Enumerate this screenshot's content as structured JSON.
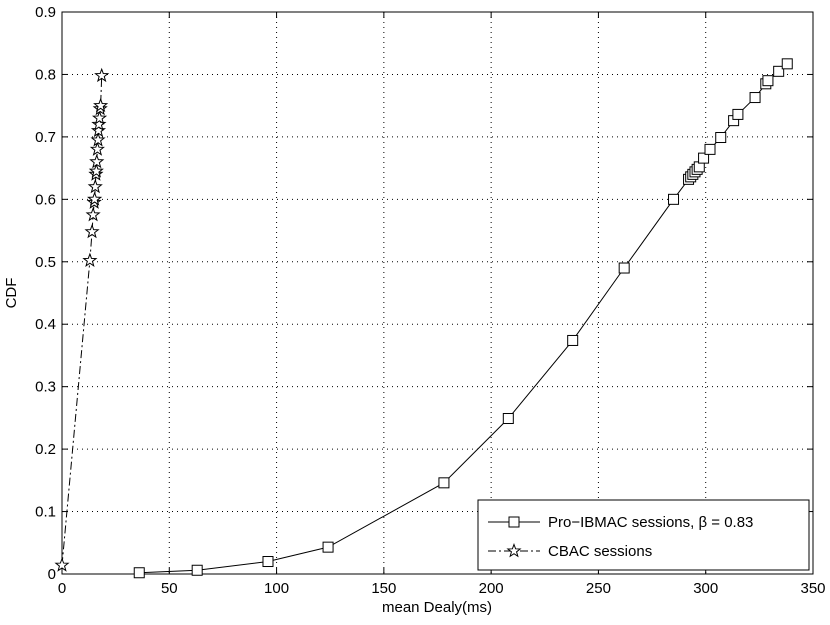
{
  "chart_data": {
    "type": "line",
    "title": "",
    "xlabel": "mean Dealy(ms)",
    "ylabel": "CDF",
    "xlim": [
      0,
      350
    ],
    "ylim": [
      0,
      0.9
    ],
    "x_ticks": [
      0,
      50,
      100,
      150,
      200,
      250,
      300,
      350
    ],
    "y_ticks": [
      0,
      0.1,
      0.2,
      0.3,
      0.4,
      0.5,
      0.6,
      0.7,
      0.8,
      0.9
    ],
    "x_tick_labels": [
      "0",
      "50",
      "100",
      "150",
      "200",
      "250",
      "300",
      "350"
    ],
    "y_tick_labels": [
      "0",
      "0.1",
      "0.2",
      "0.3",
      "0.4",
      "0.5",
      "0.6",
      "0.7",
      "0.8",
      "0.9"
    ],
    "grid": true,
    "legend_position": "bottom-right",
    "series": [
      {
        "name": "Pro−IBMAC sessions, β = 0.83",
        "line_style": "solid",
        "marker": "square",
        "color": "#000000",
        "points": [
          [
            36,
            0.002
          ],
          [
            63,
            0.006
          ],
          [
            96,
            0.02
          ],
          [
            124,
            0.043
          ],
          [
            178,
            0.146
          ],
          [
            208,
            0.249
          ],
          [
            238,
            0.374
          ],
          [
            262,
            0.49
          ],
          [
            285,
            0.6
          ],
          [
            292,
            0.632
          ],
          [
            293,
            0.636
          ],
          [
            294,
            0.64
          ],
          [
            295,
            0.644
          ],
          [
            296,
            0.648
          ],
          [
            297,
            0.652
          ],
          [
            299,
            0.666
          ],
          [
            302,
            0.68
          ],
          [
            307,
            0.699
          ],
          [
            313,
            0.726
          ],
          [
            315,
            0.736
          ],
          [
            323,
            0.763
          ],
          [
            328,
            0.785
          ],
          [
            329,
            0.79
          ],
          [
            334,
            0.805
          ],
          [
            338,
            0.817
          ]
        ]
      },
      {
        "name": "CBAC sessions",
        "line_style": "dashdot",
        "marker": "star",
        "color": "#000000",
        "points": [
          [
            0,
            0.014
          ],
          [
            13,
            0.502
          ],
          [
            14,
            0.548
          ],
          [
            14.5,
            0.575
          ],
          [
            15,
            0.595
          ],
          [
            15.2,
            0.6
          ],
          [
            15.5,
            0.62
          ],
          [
            15.8,
            0.64
          ],
          [
            16,
            0.645
          ],
          [
            16.2,
            0.66
          ],
          [
            16.5,
            0.68
          ],
          [
            16.8,
            0.695
          ],
          [
            17,
            0.71
          ],
          [
            17.2,
            0.72
          ],
          [
            17.5,
            0.73
          ],
          [
            17.8,
            0.745
          ],
          [
            18,
            0.75
          ],
          [
            18.5,
            0.798
          ]
        ]
      }
    ]
  }
}
